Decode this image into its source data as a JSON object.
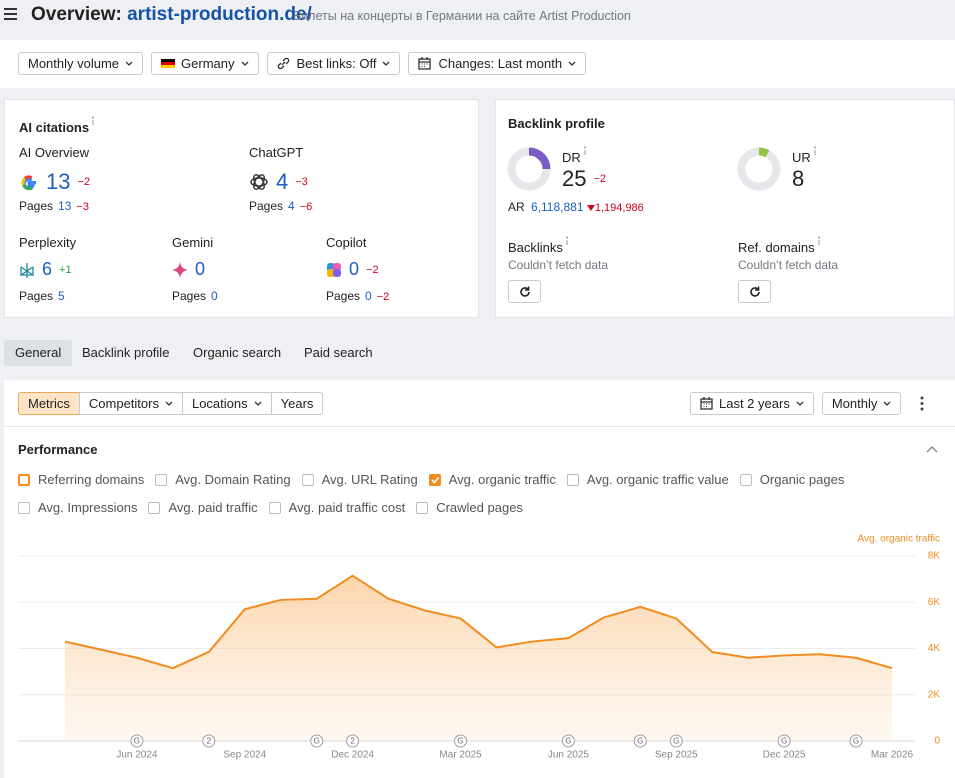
{
  "header": {
    "title": "Overview:",
    "domain": "artist-production.de/",
    "subtitle": "Билеты на концерты в Германии на сайте Artist Production"
  },
  "filters": [
    "Monthly volume",
    "Germany",
    "Best links: Off",
    "Changes: Last month"
  ],
  "ai_citations": {
    "title": "AI citations",
    "items": [
      {
        "name": "AI Overview",
        "value": 13,
        "change": "−2",
        "pages_label": "Pages",
        "pages": 13,
        "pages_change": "−3"
      },
      {
        "name": "ChatGPT",
        "value": 4,
        "change": "−3",
        "pages_label": "Pages",
        "pages": 4,
        "pages_change": "−6"
      },
      {
        "name": "Perplexity",
        "value": 6,
        "change": "+1",
        "pages_label": "Pages",
        "pages": 5
      },
      {
        "name": "Gemini",
        "value": 0,
        "pages_label": "Pages",
        "pages": 0
      },
      {
        "name": "Copilot",
        "value": 0,
        "change": "−2",
        "pages_label": "Pages",
        "pages": 0,
        "pages_change": "−2"
      }
    ]
  },
  "backlink_profile": {
    "title": "Backlink profile",
    "dr": {
      "label": "DR",
      "value": 25,
      "change": "−2",
      "color": "#7a5cc4"
    },
    "ar": {
      "label": "AR",
      "value": "6,118,881",
      "change": "1,194,986"
    },
    "ur": {
      "label": "UR",
      "value": 8,
      "color": "#8dc63f"
    },
    "backlinks": {
      "label": "Backlinks",
      "status": "Couldn’t fetch data"
    },
    "ref_domains": {
      "label": "Ref. domains",
      "status": "Couldn’t fetch data"
    }
  },
  "tabs": [
    "General",
    "Backlink profile",
    "Organic search",
    "Paid search"
  ],
  "toolbar": {
    "left": [
      "Metrics",
      "Competitors",
      "Locations",
      "Years"
    ],
    "right": [
      "Last 2 years",
      "Monthly"
    ]
  },
  "performance": {
    "title": "Performance",
    "checkboxes": [
      [
        {
          "label": "Referring domains",
          "checked": false,
          "color": "#f28c1e"
        },
        {
          "label": "Avg. Domain Rating",
          "checked": false
        },
        {
          "label": "Avg. URL Rating",
          "checked": false
        },
        {
          "label": "Avg. organic traffic",
          "checked": true,
          "color": "#f28c1e"
        },
        {
          "label": "Avg. organic traffic value",
          "checked": false
        },
        {
          "label": "Organic pages",
          "checked": false
        }
      ],
      [
        {
          "label": "Avg. Impressions",
          "checked": false
        },
        {
          "label": "Avg. paid traffic",
          "checked": false
        },
        {
          "label": "Avg. paid traffic cost",
          "checked": false
        },
        {
          "label": "Crawled pages",
          "checked": false
        }
      ]
    ],
    "chart": {
      "type": "area",
      "y_label": "Avg. organic traffic",
      "color": "#f28c1e",
      "categories": [
        null,
        null,
        "Jun 2024",
        null,
        null,
        "Sep 2024",
        null,
        null,
        "Dec 2024",
        null,
        null,
        "Mar 2025",
        null,
        null,
        "Jun 2025",
        null,
        null,
        "Sep 2025",
        null,
        null,
        "Dec 2025",
        null,
        null,
        "Mar 2026"
      ],
      "values": [
        4300,
        3950,
        3600,
        3150,
        3850,
        5700,
        6100,
        6150,
        7150,
        6150,
        5650,
        5300,
        4050,
        4300,
        4450,
        5350,
        5800,
        5300,
        3850,
        3600,
        3700,
        3750,
        3600,
        3150
      ],
      "markers": [
        null,
        null,
        "G",
        null,
        "2",
        null,
        null,
        "G",
        "2",
        null,
        null,
        "G",
        null,
        null,
        "G",
        null,
        "G",
        "G",
        null,
        null,
        "G",
        null,
        "G",
        null
      ],
      "ylim": [
        0,
        8000
      ],
      "yticks": [
        0,
        {
          "value": 2000,
          "label": "2K"
        },
        {
          "value": 4000,
          "label": "4K"
        },
        {
          "value": 6000,
          "label": "6K"
        },
        {
          "value": 8000,
          "label": "8K"
        }
      ],
      "grid": true
    }
  }
}
